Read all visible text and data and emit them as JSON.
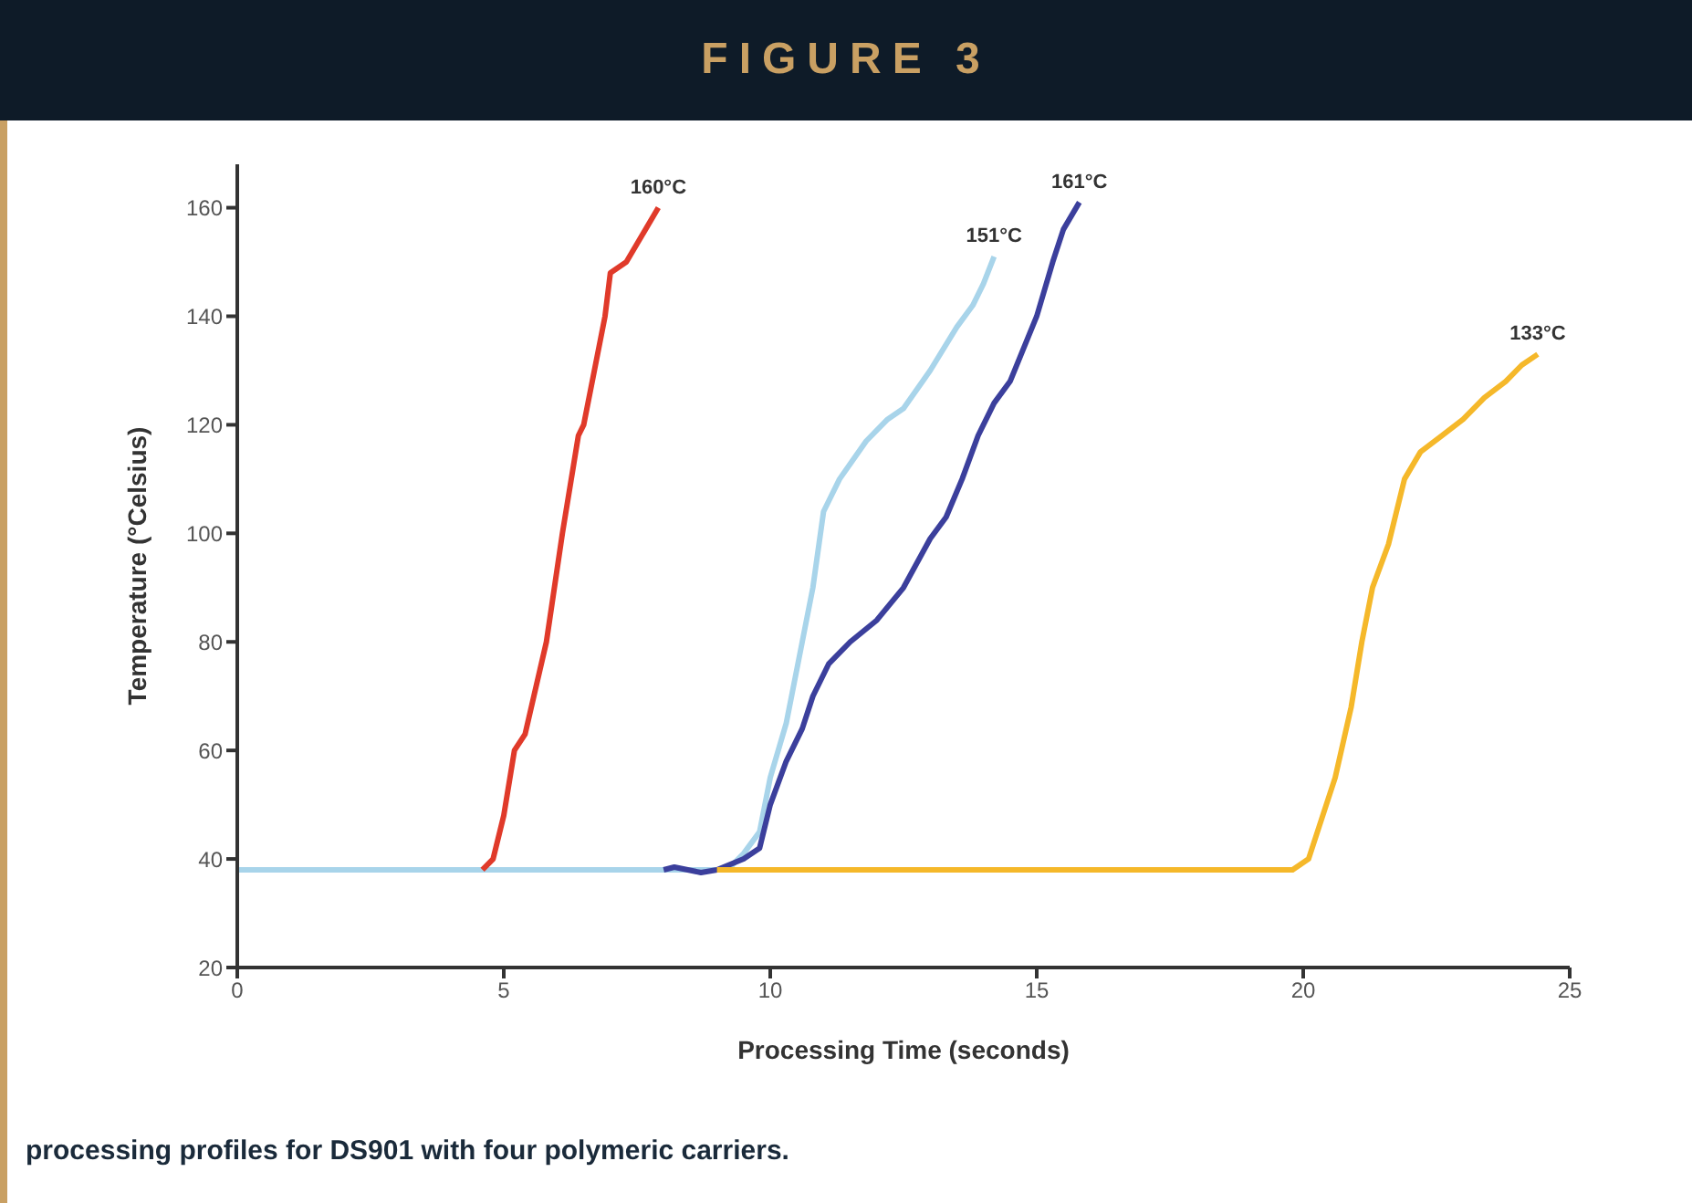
{
  "chart_data": {
    "type": "line",
    "title": "FIGURE 3",
    "xlabel": "Processing Time (seconds)",
    "ylabel": "Temperature (°Celsius)",
    "xlim": [
      0,
      25
    ],
    "xticks": [
      0,
      5,
      10,
      15,
      20,
      25
    ],
    "ylim": [
      20,
      168
    ],
    "yticks": [
      20,
      40,
      60,
      80,
      100,
      120,
      140,
      160
    ],
    "grid": false,
    "marker": "none",
    "line_style": "solid",
    "series": [
      {
        "color": "#a8d4ea",
        "x": [
          0,
          9.2,
          9.5,
          9.8,
          10.0,
          10.3,
          10.6,
          10.8,
          11.0,
          11.3,
          11.8,
          12.2,
          12.5,
          13.0,
          13.5,
          13.8,
          14.0,
          14.2
        ],
        "values": [
          38,
          38,
          41,
          45,
          55,
          65,
          80,
          90,
          104,
          110,
          117,
          121,
          123,
          130,
          138,
          142,
          146,
          151
        ]
      },
      {
        "color": "#e03a2a",
        "x": [
          4.6,
          4.8,
          5.0,
          5.2,
          5.4,
          5.8,
          6.1,
          6.4,
          6.5,
          6.9,
          7.0,
          7.3,
          7.6,
          7.9
        ],
        "values": [
          38,
          40,
          48,
          60,
          63,
          80,
          100,
          118,
          120,
          140,
          148,
          150,
          155,
          160
        ]
      },
      {
        "color": "#3b3f9c",
        "x": [
          8.0,
          8.2,
          8.7,
          9.0,
          9.5,
          9.8,
          10.0,
          10.3,
          10.6,
          10.8,
          11.1,
          11.5,
          12.0,
          12.5,
          13.0,
          13.3,
          13.6,
          13.9,
          14.2,
          14.5,
          15.0,
          15.3,
          15.5,
          15.8
        ],
        "values": [
          38,
          38.5,
          37.5,
          38,
          40,
          42,
          50,
          58,
          64,
          70,
          76,
          80,
          84,
          90,
          99,
          103,
          110,
          118,
          124,
          128,
          140,
          150,
          156,
          161
        ]
      },
      {
        "color": "#f5b82a",
        "x": [
          9.0,
          19.8,
          20.1,
          20.3,
          20.6,
          20.9,
          21.1,
          21.3,
          21.6,
          21.9,
          22.2,
          22.6,
          23.0,
          23.4,
          23.8,
          24.1,
          24.4
        ],
        "values": [
          38,
          38,
          40,
          46,
          55,
          68,
          80,
          90,
          98,
          110,
          115,
          118,
          121,
          125,
          128,
          131,
          133
        ]
      }
    ],
    "annotations": [
      {
        "text": "160°C",
        "x": 7.9,
        "y": 160
      },
      {
        "text": "151°C",
        "x": 14.2,
        "y": 151
      },
      {
        "text": "161°C",
        "x": 15.8,
        "y": 161
      },
      {
        "text": "133°C",
        "x": 24.4,
        "y": 133
      },
      "processing profiles for DS901 with four polymeric carriers."
    ]
  }
}
